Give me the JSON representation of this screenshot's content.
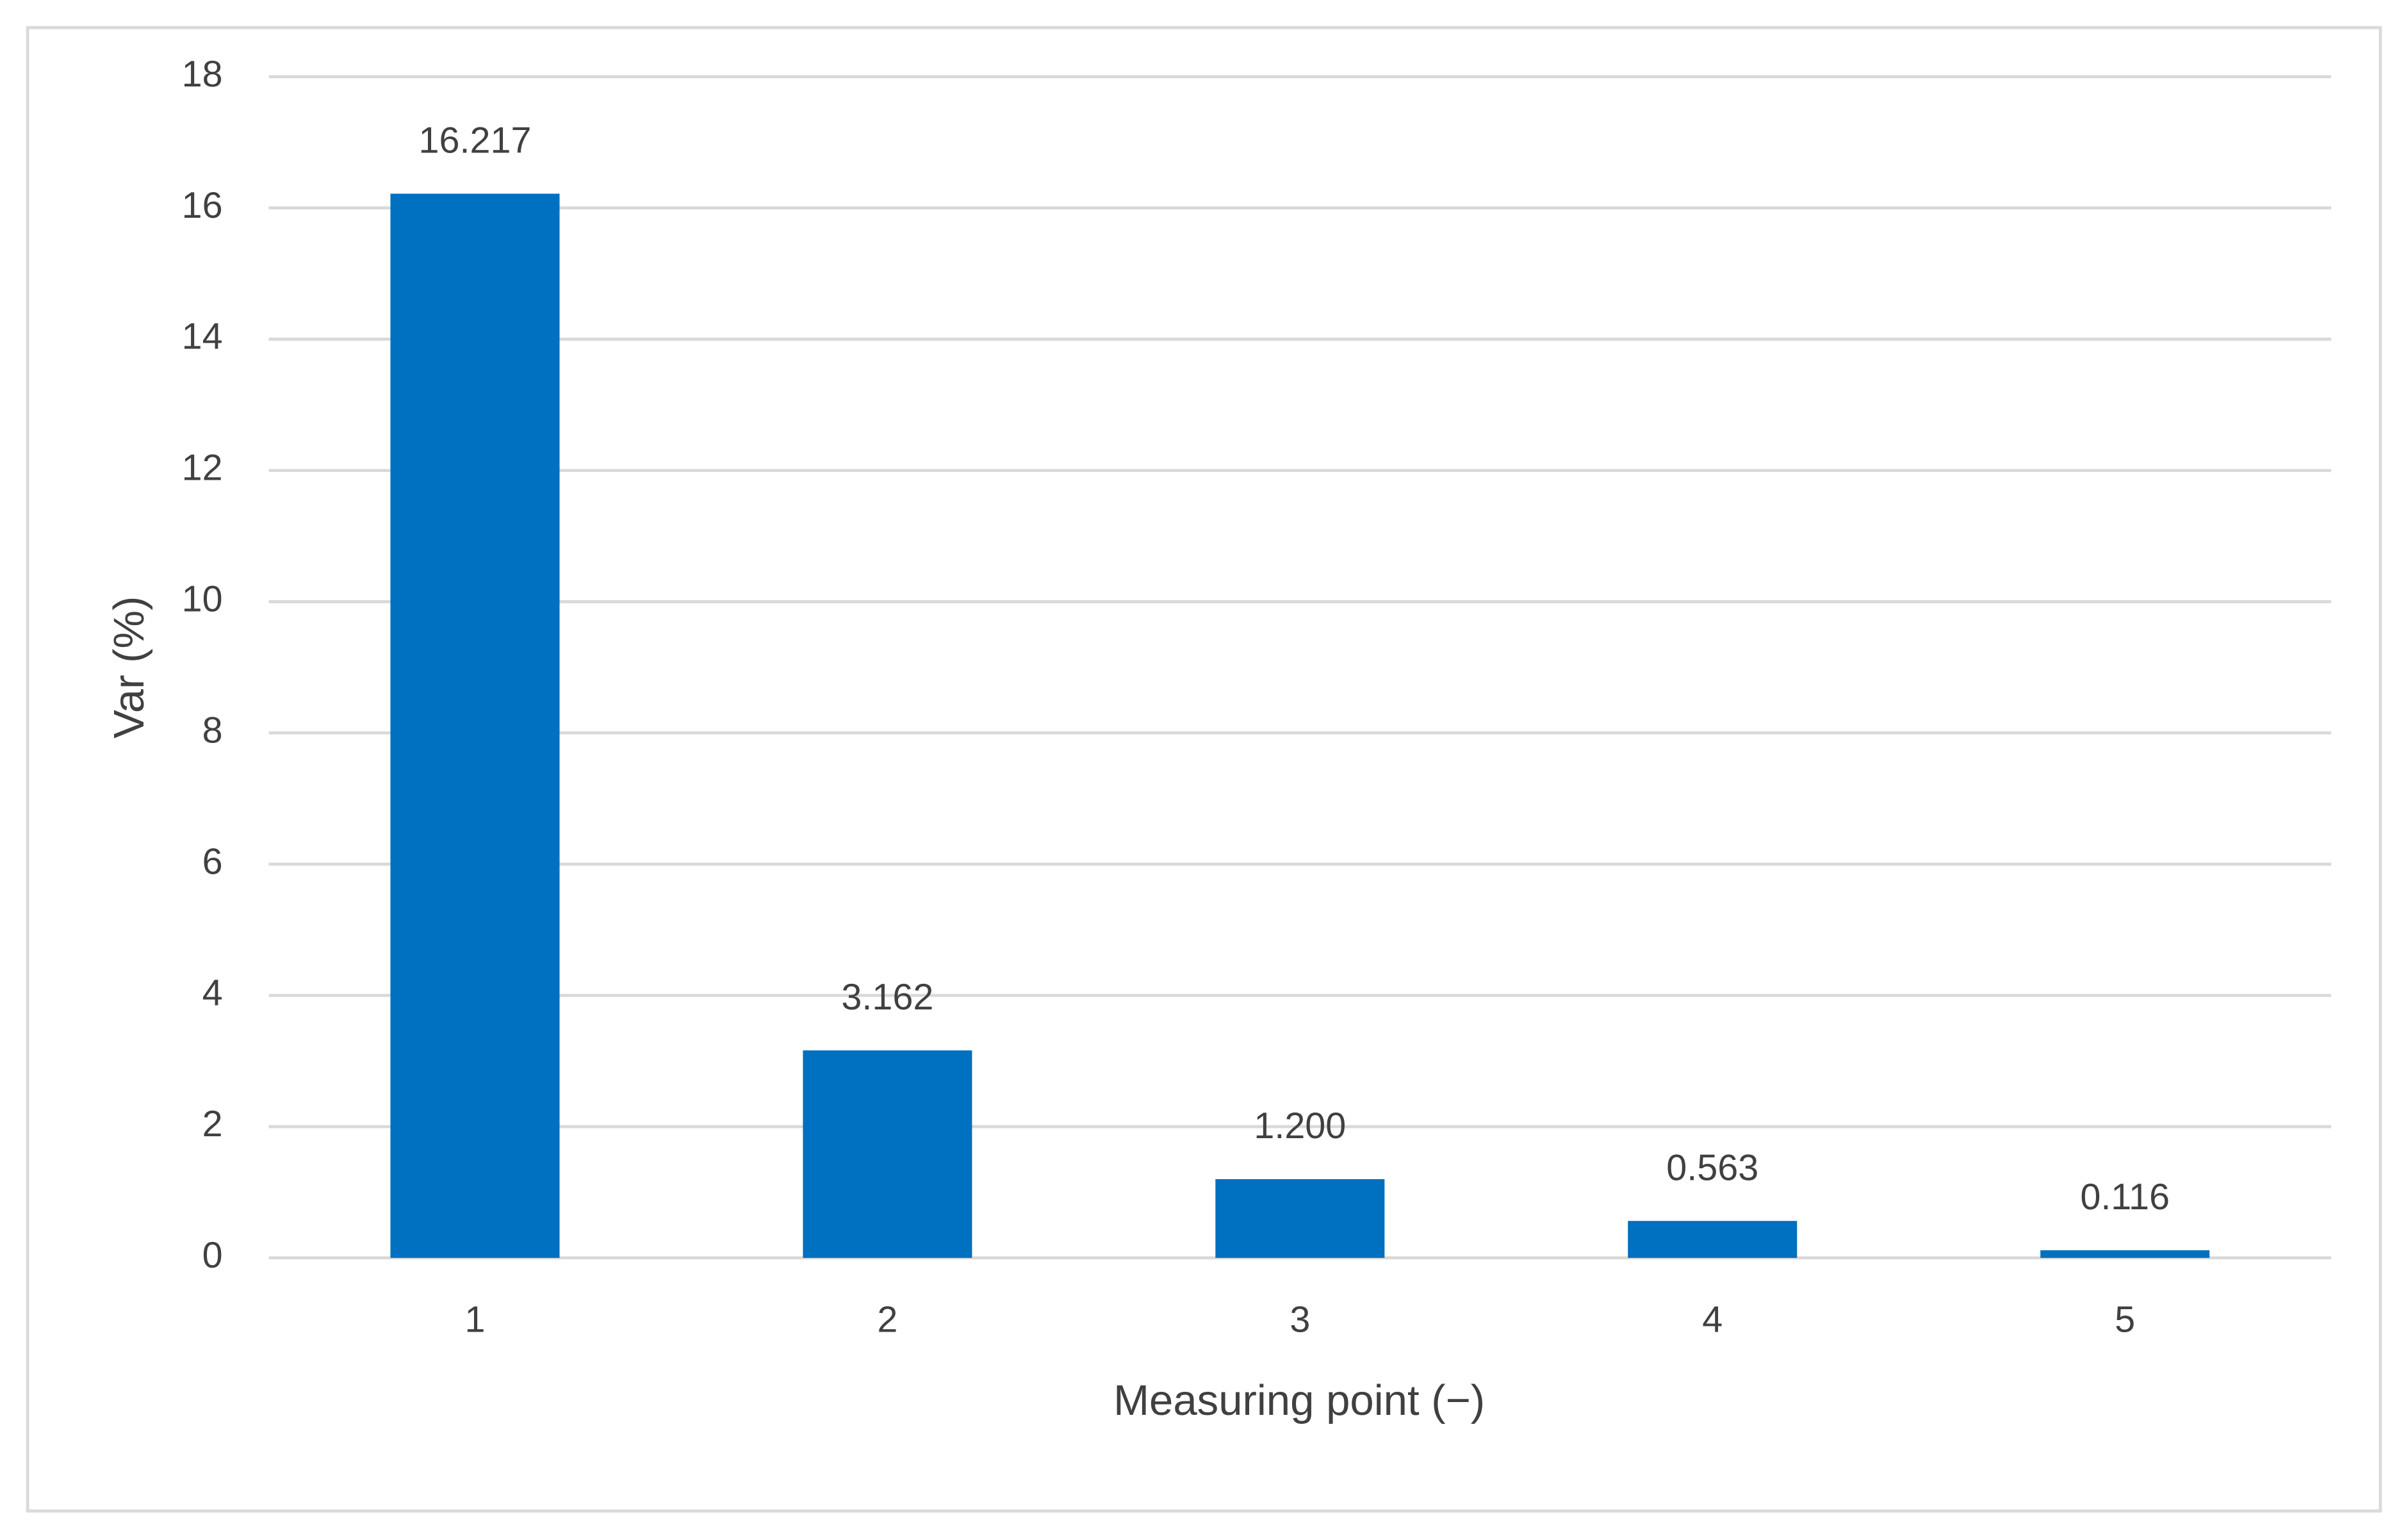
{
  "chart_data": {
    "type": "bar",
    "x_label": "Measuring point (−)",
    "y_label": "Var (%)",
    "categories": [
      "1",
      "2",
      "3",
      "4",
      "5"
    ],
    "values": [
      16.217,
      3.162,
      1.2,
      0.563,
      0.116
    ],
    "value_labels": [
      "16.217",
      "3.162",
      "1.200",
      "0.563",
      "0.116"
    ],
    "color": "#0070c0",
    "ylim": [
      0,
      18
    ],
    "yticks": [
      0,
      2,
      4,
      6,
      8,
      10,
      12,
      14,
      16,
      18
    ],
    "grid": true
  }
}
